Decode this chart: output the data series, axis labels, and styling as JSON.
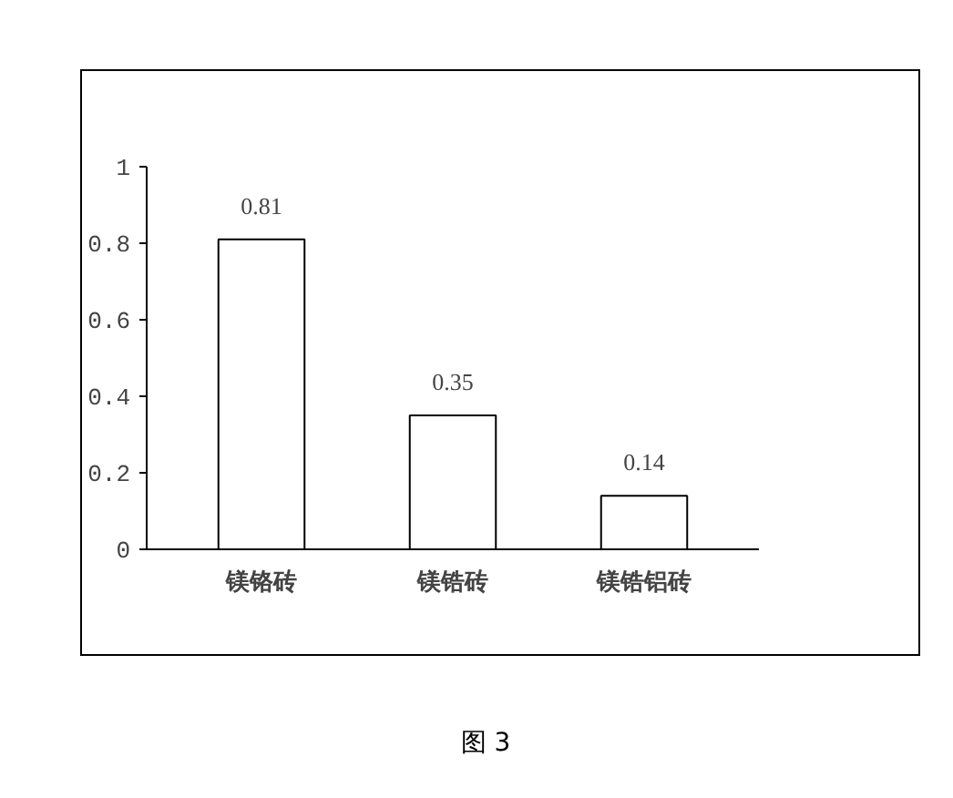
{
  "chart_data": {
    "type": "bar",
    "categories": [
      "镁铬砖",
      "镁锆砖",
      "镁锆铝砖"
    ],
    "values": [
      0.81,
      0.35,
      0.14
    ],
    "color": "#ffffff",
    "ylim": [
      0,
      1
    ],
    "yticks": [
      0,
      0.2,
      0.4,
      0.6,
      0.8,
      1
    ],
    "grid": false,
    "data_labels": true,
    "annotations": [
      "图 3"
    ]
  }
}
